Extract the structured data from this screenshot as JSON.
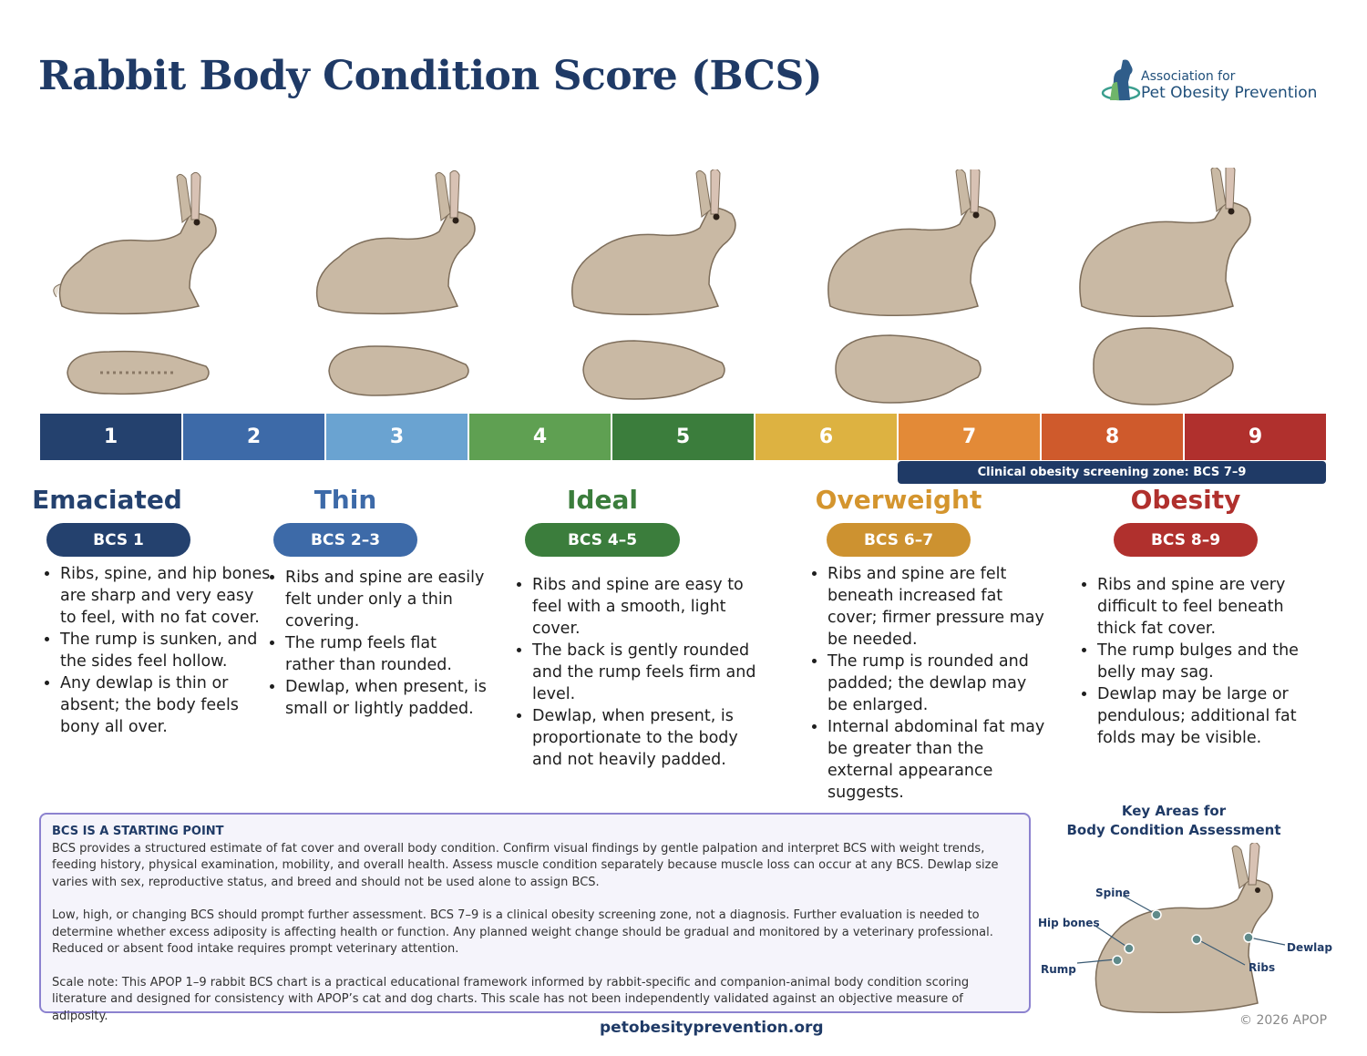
{
  "title": "Rabbit Body Condition Score (BCS)",
  "logo": {
    "line1": "Association for",
    "line2": "Pet Obesity Prevention"
  },
  "scale": [
    {
      "label": "1",
      "color": "#24416e"
    },
    {
      "label": "2",
      "color": "#3d6aa8"
    },
    {
      "label": "3",
      "color": "#6aa3d1"
    },
    {
      "label": "4",
      "color": "#5fa052"
    },
    {
      "label": "5",
      "color": "#3b7d3c"
    },
    {
      "label": "6",
      "color": "#ddb241"
    },
    {
      "label": "7",
      "color": "#e38a37"
    },
    {
      "label": "8",
      "color": "#cf5a2c"
    },
    {
      "label": "9",
      "color": "#b0302d"
    }
  ],
  "zone_label": "Clinical obesity screening zone: BCS 7–9",
  "categories": [
    {
      "title": "Emaciated",
      "badge": "BCS 1",
      "color": "#24416e",
      "bullets": [
        "Ribs, spine, and hip bones are sharp and very easy to feel, with no fat cover.",
        "The rump is sunken, and the sides feel hollow.",
        "Any dewlap is thin or absent; the body feels bony all over."
      ]
    },
    {
      "title": "Thin",
      "badge": "BCS 2–3",
      "color": "#3d6aa8",
      "bullets": [
        "Ribs and spine are easily felt under only a thin covering.",
        "The rump feels flat rather than rounded.",
        "Dewlap, when present, is small or lightly padded."
      ]
    },
    {
      "title": "Ideal",
      "badge": "BCS 4–5",
      "color": "#3b7d3c",
      "bullets": [
        "Ribs and spine are easy to feel with a smooth, light cover.",
        "The back is gently rounded and the rump feels firm and level.",
        "Dewlap, when present, is proportionate to the body and not heavily padded."
      ]
    },
    {
      "title": "Overweight",
      "badge": "BCS 6–7",
      "color": "#d4952e",
      "bullets": [
        "Ribs and spine are felt beneath increased fat cover; firmer pressure may be needed.",
        "The rump is rounded and padded; the dewlap may be enlarged.",
        "Internal abdominal fat may be greater than the external appearance suggests."
      ]
    },
    {
      "title": "Obesity",
      "badge": "BCS 8–9",
      "color": "#b0302d",
      "bullets": [
        "Ribs and spine are very difficult to feel beneath thick fat cover.",
        "The rump bulges and the belly may sag.",
        "Dewlap may be large or pendulous; additional fat folds may be visible."
      ]
    }
  ],
  "info": {
    "heading": "BCS IS A STARTING POINT",
    "p1": "BCS provides a structured estimate of fat cover and overall body condition. Confirm visual findings by gentle palpation and interpret BCS with weight trends, feeding history, physical examination, mobility, and overall health. Assess muscle condition separately because muscle loss can occur at any BCS. Dewlap size varies with sex, reproductive status, and breed and should not be used alone to assign BCS.",
    "p2": "Low, high, or changing BCS should prompt further assessment. BCS 7–9 is a clinical obesity screening zone, not a diagnosis. Further evaluation is needed to determine whether excess adiposity is affecting health or function. Any planned weight change should be gradual and monitored by a veterinary professional. Reduced or absent food intake requires prompt veterinary attention.",
    "p3": "Scale note: This APOP 1–9 rabbit BCS chart is a practical educational framework informed by rabbit-specific and companion-animal body condition scoring literature and designed for consistency with APOP’s cat and dog charts. This scale has not been independently validated against an objective measure of adiposity."
  },
  "key_areas": {
    "title_line1": "Key Areas for",
    "title_line2": "Body Condition Assessment",
    "labels": {
      "spine": "Spine",
      "hip": "Hip bones",
      "rump": "Rump",
      "ribs": "Ribs",
      "dewlap": "Dewlap"
    }
  },
  "footer": {
    "url": "petobesityprevention.org",
    "copyright": "© 2026 APOP"
  }
}
